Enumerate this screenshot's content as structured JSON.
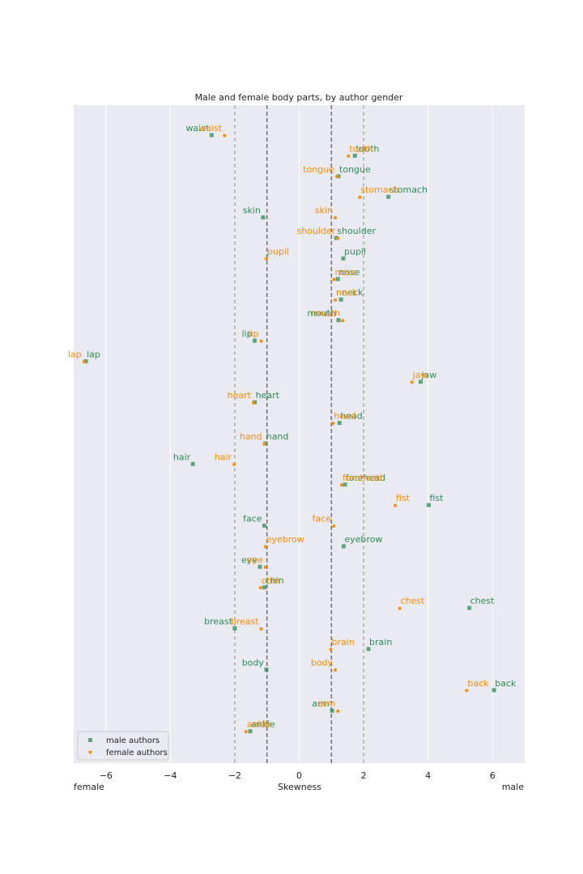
{
  "chart_data": {
    "type": "scatter",
    "title": "Male and female body parts, by author gender",
    "xlabel": "Skewness",
    "x_side_labels": {
      "left": "female",
      "right": "male"
    },
    "xlim": [
      -7,
      7
    ],
    "xticks": [
      -6,
      -4,
      -2,
      0,
      2,
      4,
      6
    ],
    "xtick_labels": [
      "−6",
      "−4",
      "−2",
      "0",
      "2",
      "4",
      "6"
    ],
    "reference_lines": [
      -2,
      -1,
      1,
      2
    ],
    "grid": true,
    "legend_position": "bottom-left",
    "categories": [
      "waist",
      "tooth",
      "tongue",
      "stomach",
      "skin",
      "shoulder",
      "pupil",
      "nose",
      "neck",
      "mouth",
      "lip",
      "lap",
      "jaw",
      "heart",
      "head",
      "hand",
      "hair",
      "forehead",
      "fist",
      "face",
      "eyebrow",
      "eye",
      "chin",
      "chest",
      "breast",
      "brain",
      "body",
      "back",
      "arm",
      "ankle"
    ],
    "series": [
      {
        "name": "male authors",
        "color": "#2e8b57",
        "marker": "square",
        "values": [
          -2.72,
          1.73,
          1.22,
          2.77,
          -1.12,
          1.15,
          1.37,
          1.2,
          1.3,
          1.22,
          -1.38,
          -6.62,
          3.77,
          -1.38,
          1.25,
          -1.05,
          -3.3,
          1.42,
          4.02,
          -1.08,
          1.38,
          -1.22,
          -1.08,
          5.28,
          -2.0,
          2.15,
          -1.02,
          6.05,
          1.02,
          -1.52
        ]
      },
      {
        "name": "female authors",
        "color": "#ff8c00",
        "marker": "circle",
        "values": [
          -2.32,
          1.53,
          1.17,
          1.88,
          1.12,
          1.2,
          -1.02,
          1.08,
          1.12,
          1.35,
          -1.18,
          -6.68,
          3.5,
          -1.42,
          1.05,
          -1.08,
          -2.02,
          1.32,
          2.98,
          1.07,
          -1.05,
          -1.05,
          -1.2,
          3.12,
          -1.18,
          0.98,
          1.12,
          5.2,
          1.2,
          -1.65
        ]
      }
    ]
  }
}
